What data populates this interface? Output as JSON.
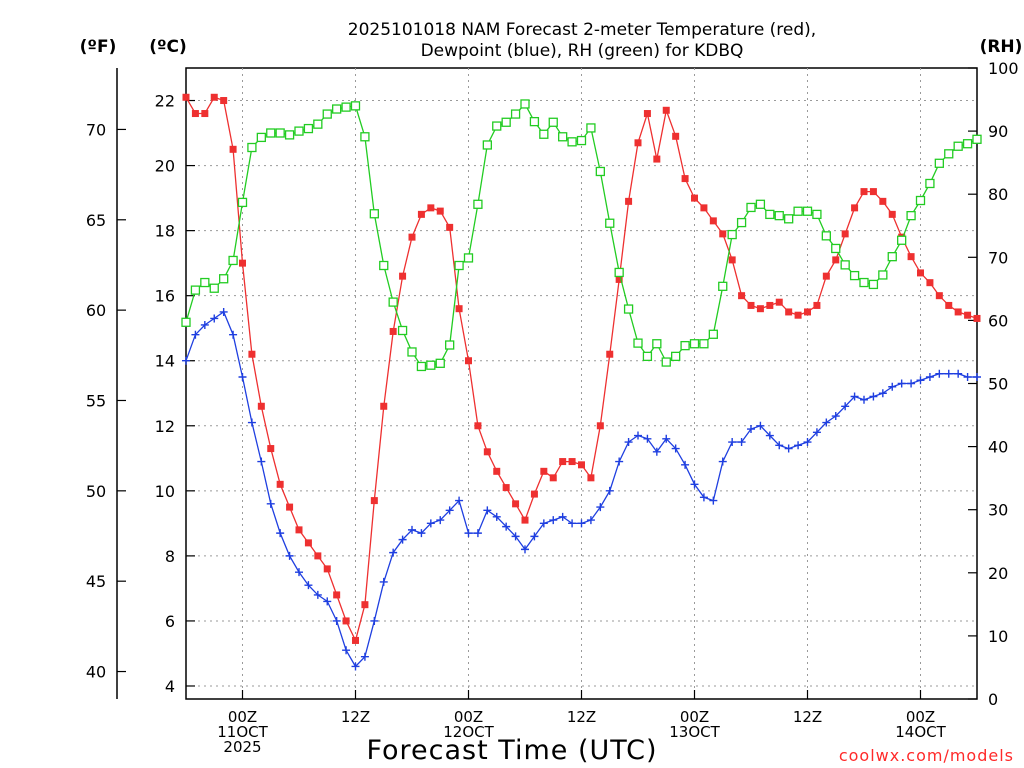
{
  "chart_data": {
    "type": "line",
    "title_lines": [
      "2025101018 NAM Forecast 2-meter Temperature (red),",
      "Dewpoint (blue), RH (green) for KDBQ"
    ],
    "xlabel": "Forecast Time (UTC)",
    "credit": "coolwx.com/models",
    "units": {
      "fahrenheit": "(ºF)",
      "celsius": "(ºC)",
      "rh": "(RH)"
    },
    "x_range_hours": [
      0,
      84
    ],
    "x_ticks": [
      {
        "hour": 6,
        "lines": [
          "00Z",
          "11OCT",
          "2025"
        ]
      },
      {
        "hour": 18,
        "lines": [
          "12Z"
        ]
      },
      {
        "hour": 30,
        "lines": [
          "00Z",
          "12OCT"
        ]
      },
      {
        "hour": 42,
        "lines": [
          "12Z"
        ]
      },
      {
        "hour": 54,
        "lines": [
          "00Z",
          "13OCT"
        ]
      },
      {
        "hour": 66,
        "lines": [
          "12Z"
        ]
      },
      {
        "hour": 78,
        "lines": [
          "00Z",
          "14OCT"
        ]
      }
    ],
    "celsius_axis": {
      "range": [
        3.6,
        23.0
      ],
      "ticks": [
        "4",
        "6",
        "8",
        "10",
        "12",
        "14",
        "16",
        "18",
        "20",
        "22"
      ]
    },
    "fahrenheit_axis": {
      "ticks": [
        "40",
        "45",
        "50",
        "55",
        "60",
        "65",
        "70"
      ]
    },
    "rh_axis": {
      "range": [
        0,
        100
      ],
      "ticks": [
        "0",
        "10",
        "20",
        "30",
        "40",
        "50",
        "60",
        "70",
        "80",
        "90",
        "100"
      ]
    },
    "series": [
      {
        "name": "Temperature",
        "unit": "C",
        "color": "#ee3030",
        "marker": "filled-square",
        "values": [
          22.1,
          21.6,
          21.6,
          22.1,
          22.0,
          20.5,
          17.0,
          14.2,
          12.6,
          11.3,
          10.2,
          9.5,
          8.8,
          8.4,
          8.0,
          7.6,
          6.8,
          6.0,
          5.4,
          6.5,
          9.7,
          12.6,
          14.9,
          16.6,
          17.8,
          18.5,
          18.7,
          18.6,
          18.1,
          15.6,
          14.0,
          12.0,
          11.2,
          10.6,
          10.1,
          9.6,
          9.1,
          9.9,
          10.6,
          10.4,
          10.9,
          10.9,
          10.8,
          10.4,
          12.0,
          14.2,
          16.5,
          18.9,
          20.7,
          21.6,
          20.2,
          21.7,
          20.9,
          19.6,
          19.0,
          18.7,
          18.3,
          17.9,
          17.1,
          16.0,
          15.7,
          15.6,
          15.7,
          15.8,
          15.5,
          15.4,
          15.5,
          15.7,
          16.6,
          17.1,
          17.9,
          18.7,
          19.2,
          19.2,
          18.9,
          18.5,
          17.8,
          17.2,
          16.7,
          16.4,
          16.0,
          15.7,
          15.5,
          15.4,
          15.3
        ]
      },
      {
        "name": "Dewpoint",
        "unit": "C",
        "color": "#1f3fe0",
        "marker": "plus",
        "values": [
          14.0,
          14.8,
          15.1,
          15.3,
          15.5,
          14.8,
          13.5,
          12.1,
          10.9,
          9.6,
          8.7,
          8.0,
          7.5,
          7.1,
          6.8,
          6.6,
          6.0,
          5.1,
          4.6,
          4.9,
          6.0,
          7.2,
          8.1,
          8.5,
          8.8,
          8.7,
          9.0,
          9.1,
          9.4,
          9.7,
          8.7,
          8.7,
          9.4,
          9.2,
          8.9,
          8.6,
          8.2,
          8.6,
          9.0,
          9.1,
          9.2,
          9.0,
          9.0,
          9.1,
          9.5,
          10.0,
          10.9,
          11.5,
          11.7,
          11.6,
          11.2,
          11.6,
          11.3,
          10.8,
          10.2,
          9.8,
          9.7,
          10.9,
          11.5,
          11.5,
          11.9,
          12.0,
          11.7,
          11.4,
          11.3,
          11.4,
          11.5,
          11.8,
          12.1,
          12.3,
          12.6,
          12.9,
          12.8,
          12.9,
          13.0,
          13.2,
          13.3,
          13.3,
          13.4,
          13.5,
          13.6,
          13.6,
          13.6,
          13.5,
          13.5
        ]
      },
      {
        "name": "RH",
        "unit": "%",
        "color": "#22cc22",
        "marker": "open-square",
        "values": [
          59.7,
          64.8,
          66.0,
          65.1,
          66.6,
          69.5,
          78.7,
          87.4,
          89.0,
          89.7,
          89.7,
          89.4,
          90.0,
          90.4,
          91.1,
          92.7,
          93.5,
          93.8,
          94.0,
          89.1,
          76.9,
          68.7,
          62.9,
          58.4,
          55.0,
          52.7,
          52.9,
          53.2,
          56.1,
          68.7,
          69.9,
          78.4,
          87.8,
          90.8,
          91.4,
          92.7,
          94.3,
          91.5,
          89.5,
          91.4,
          89.1,
          88.3,
          88.5,
          90.5,
          83.6,
          75.4,
          67.6,
          61.8,
          56.4,
          54.3,
          56.3,
          53.4,
          54.3,
          56.0,
          56.3,
          56.3,
          57.8,
          65.4,
          73.6,
          75.5,
          77.9,
          78.4,
          76.8,
          76.6,
          76.1,
          77.3,
          77.3,
          76.8,
          73.4,
          71.4,
          68.8,
          67.1,
          66.0,
          65.7,
          67.2,
          70.1,
          72.7,
          76.6,
          79.0,
          81.7,
          84.9,
          86.4,
          87.6,
          88.0,
          88.7
        ]
      }
    ]
  }
}
